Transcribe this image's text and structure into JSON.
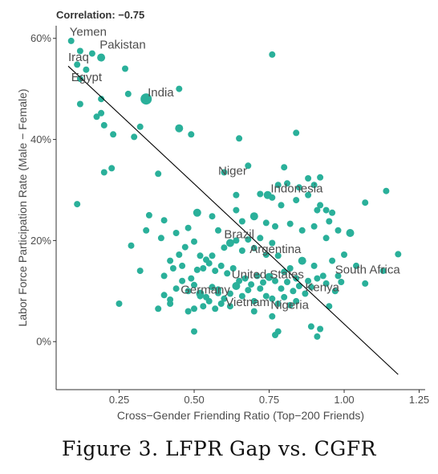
{
  "annotation": "Correlation: −0.75",
  "caption": "Figure 3. LFPR Gap vs. CGFR",
  "colors": {
    "point": "#2ab09a",
    "fit_line": "#000000",
    "axis": "#333333",
    "text": "#4d4d4d"
  },
  "chart_data": {
    "type": "scatter",
    "title": "",
    "xlabel": "Cross−Gender Friending Ratio (Top−200 Friends)",
    "ylabel": "Labor Force Participation Rate (Male − Female)",
    "xlim": [
      0.04,
      1.27
    ],
    "ylim": [
      -9.5,
      62.5
    ],
    "xticks": [
      0.25,
      0.5,
      0.75,
      1.0,
      1.25
    ],
    "xtick_labels": [
      "0.25",
      "0.50",
      "0.75",
      "1.00",
      "1.25"
    ],
    "yticks": [
      0,
      20,
      40,
      60
    ],
    "ytick_labels": [
      "0%",
      "20%",
      "40%",
      "60%"
    ],
    "grid": false,
    "fit_line": {
      "x": [
        0.08,
        1.18
      ],
      "y": [
        54.5,
        -6.5
      ]
    },
    "labels": [
      {
        "text": "Yemen",
        "x": 0.085,
        "y": 60.5
      },
      {
        "text": "Pakistan",
        "x": 0.185,
        "y": 58.0
      },
      {
        "text": "Iraq",
        "x": 0.08,
        "y": 55.5
      },
      {
        "text": "Egypt",
        "x": 0.09,
        "y": 51.5
      },
      {
        "text": "India",
        "x": 0.345,
        "y": 48.5
      },
      {
        "text": "Niger",
        "x": 0.58,
        "y": 33.0
      },
      {
        "text": "Indonesia",
        "x": 0.755,
        "y": 29.5
      },
      {
        "text": "Brazil",
        "x": 0.6,
        "y": 20.5
      },
      {
        "text": "Argentina",
        "x": 0.685,
        "y": 17.5
      },
      {
        "text": "South Africa",
        "x": 0.97,
        "y": 13.5
      },
      {
        "text": "United States",
        "x": 0.625,
        "y": 12.5
      },
      {
        "text": "Kenya",
        "x": 0.87,
        "y": 10.0
      },
      {
        "text": "Germany",
        "x": 0.455,
        "y": 9.5
      },
      {
        "text": "Vietnam",
        "x": 0.605,
        "y": 7.0
      },
      {
        "text": "Nigeria",
        "x": 0.755,
        "y": 6.5
      }
    ],
    "points": [
      [
        0.09,
        59.5,
        4
      ],
      [
        0.12,
        57.5,
        4
      ],
      [
        0.16,
        57.0,
        4
      ],
      [
        0.19,
        56.2,
        5
      ],
      [
        0.11,
        54.8,
        4
      ],
      [
        0.14,
        53.8,
        4
      ],
      [
        0.27,
        54.0,
        4
      ],
      [
        0.12,
        52.0,
        4
      ],
      [
        0.12,
        47.0,
        4
      ],
      [
        0.175,
        44.5,
        4
      ],
      [
        0.19,
        45.2,
        4
      ],
      [
        0.2,
        42.8,
        4
      ],
      [
        0.19,
        48.0,
        4
      ],
      [
        0.28,
        49.0,
        4
      ],
      [
        0.34,
        48.0,
        7
      ],
      [
        0.45,
        50.0,
        4
      ],
      [
        0.32,
        42.5,
        4
      ],
      [
        0.3,
        40.5,
        4
      ],
      [
        0.23,
        41.0,
        4
      ],
      [
        0.45,
        42.2,
        5
      ],
      [
        0.49,
        41.0,
        4
      ],
      [
        0.65,
        40.2,
        4
      ],
      [
        0.76,
        56.8,
        4
      ],
      [
        0.84,
        41.3,
        4
      ],
      [
        0.2,
        33.5,
        4
      ],
      [
        0.225,
        34.3,
        4
      ],
      [
        0.11,
        27.2,
        4
      ],
      [
        0.38,
        33.2,
        4
      ],
      [
        0.6,
        33.5,
        4
      ],
      [
        0.68,
        34.8,
        4
      ],
      [
        0.8,
        34.5,
        4
      ],
      [
        0.88,
        32.3,
        4
      ],
      [
        0.64,
        29.0,
        4
      ],
      [
        0.72,
        29.2,
        4
      ],
      [
        0.745,
        29.0,
        5
      ],
      [
        0.78,
        31.0,
        4
      ],
      [
        0.81,
        31.3,
        4
      ],
      [
        0.85,
        30.5,
        4
      ],
      [
        0.9,
        31.0,
        4
      ],
      [
        0.92,
        32.5,
        4
      ],
      [
        0.76,
        28.5,
        4
      ],
      [
        0.79,
        27.0,
        4
      ],
      [
        0.84,
        28.0,
        4
      ],
      [
        0.88,
        29.0,
        4
      ],
      [
        0.91,
        26.0,
        4
      ],
      [
        0.92,
        27.0,
        4
      ],
      [
        0.94,
        26.0,
        4
      ],
      [
        0.96,
        25.5,
        4
      ],
      [
        1.07,
        27.5,
        4
      ],
      [
        1.14,
        29.8,
        4
      ],
      [
        0.51,
        25.5,
        5
      ],
      [
        0.56,
        24.8,
        4
      ],
      [
        0.35,
        25.0,
        4
      ],
      [
        0.4,
        24.0,
        4
      ],
      [
        0.44,
        21.5,
        4
      ],
      [
        0.48,
        22.5,
        4
      ],
      [
        0.64,
        26.0,
        4
      ],
      [
        0.66,
        23.8,
        4
      ],
      [
        0.7,
        24.8,
        5
      ],
      [
        0.74,
        23.5,
        4
      ],
      [
        0.77,
        22.8,
        4
      ],
      [
        0.82,
        23.3,
        4
      ],
      [
        0.86,
        22.0,
        4
      ],
      [
        0.9,
        22.8,
        4
      ],
      [
        0.95,
        23.8,
        4
      ],
      [
        0.94,
        20.5,
        4
      ],
      [
        0.98,
        22.0,
        4
      ],
      [
        1.02,
        21.5,
        5
      ],
      [
        1.18,
        17.3,
        4
      ],
      [
        1.13,
        14.0,
        4
      ],
      [
        1.07,
        11.5,
        4
      ],
      [
        1.04,
        15.0,
        4
      ],
      [
        1.0,
        17.2,
        4
      ],
      [
        0.98,
        13.0,
        4
      ],
      [
        0.96,
        16.0,
        4
      ],
      [
        0.93,
        13.0,
        4
      ],
      [
        0.9,
        15.0,
        4
      ],
      [
        0.88,
        12.0,
        4
      ],
      [
        0.86,
        16.0,
        5
      ],
      [
        0.84,
        12.5,
        4
      ],
      [
        0.82,
        14.5,
        4
      ],
      [
        0.8,
        13.8,
        4
      ],
      [
        0.78,
        17.0,
        4
      ],
      [
        0.76,
        19.5,
        4
      ],
      [
        0.74,
        17.2,
        4
      ],
      [
        0.72,
        20.5,
        4
      ],
      [
        0.7,
        18.5,
        4
      ],
      [
        0.68,
        20.2,
        4
      ],
      [
        0.66,
        18.0,
        4
      ],
      [
        0.64,
        20.0,
        4
      ],
      [
        0.62,
        19.5,
        5
      ],
      [
        0.6,
        18.6,
        4
      ],
      [
        0.58,
        22.0,
        4
      ],
      [
        0.56,
        17.0,
        4
      ],
      [
        0.54,
        16.2,
        4
      ],
      [
        0.52,
        17.0,
        4
      ],
      [
        0.5,
        19.8,
        4
      ],
      [
        0.47,
        18.7,
        4
      ],
      [
        0.45,
        17.2,
        4
      ],
      [
        0.42,
        16.0,
        4
      ],
      [
        0.39,
        20.5,
        4
      ],
      [
        0.34,
        22.0,
        4
      ],
      [
        0.29,
        19.0,
        4
      ],
      [
        0.32,
        14.0,
        4
      ],
      [
        0.4,
        13.0,
        4
      ],
      [
        0.43,
        14.5,
        4
      ],
      [
        0.46,
        15.0,
        4
      ],
      [
        0.49,
        12.5,
        4
      ],
      [
        0.51,
        14.2,
        4
      ],
      [
        0.53,
        14.5,
        4
      ],
      [
        0.55,
        15.5,
        4
      ],
      [
        0.57,
        14.0,
        4
      ],
      [
        0.59,
        15.0,
        4
      ],
      [
        0.61,
        13.5,
        4
      ],
      [
        0.63,
        14.5,
        4
      ],
      [
        0.65,
        12.0,
        4
      ],
      [
        0.67,
        12.5,
        4
      ],
      [
        0.69,
        11.3,
        4
      ],
      [
        0.71,
        13.0,
        4
      ],
      [
        0.73,
        11.7,
        4
      ],
      [
        0.75,
        12.8,
        5
      ],
      [
        0.77,
        12.0,
        4
      ],
      [
        0.79,
        10.5,
        4
      ],
      [
        0.81,
        11.8,
        4
      ],
      [
        0.83,
        10.0,
        4
      ],
      [
        0.85,
        11.0,
        4
      ],
      [
        0.87,
        9.5,
        4
      ],
      [
        0.89,
        10.8,
        4
      ],
      [
        0.91,
        12.5,
        4
      ],
      [
        0.94,
        11.5,
        4
      ],
      [
        0.97,
        10.0,
        4
      ],
      [
        0.99,
        11.8,
        4
      ],
      [
        0.4,
        9.2,
        4
      ],
      [
        0.42,
        8.3,
        4
      ],
      [
        0.44,
        10.5,
        4
      ],
      [
        0.46,
        12.0,
        4
      ],
      [
        0.48,
        10.0,
        4
      ],
      [
        0.5,
        11.2,
        4
      ],
      [
        0.52,
        9.0,
        4
      ],
      [
        0.54,
        8.8,
        4
      ],
      [
        0.56,
        10.8,
        4
      ],
      [
        0.58,
        9.6,
        4
      ],
      [
        0.6,
        8.5,
        4
      ],
      [
        0.62,
        9.5,
        4
      ],
      [
        0.64,
        11.0,
        5
      ],
      [
        0.66,
        9.0,
        4
      ],
      [
        0.68,
        10.2,
        4
      ],
      [
        0.7,
        8.0,
        4
      ],
      [
        0.72,
        10.5,
        4
      ],
      [
        0.74,
        9.0,
        4
      ],
      [
        0.76,
        8.5,
        4
      ],
      [
        0.78,
        7.5,
        4
      ],
      [
        0.8,
        8.8,
        4
      ],
      [
        0.82,
        7.2,
        4
      ],
      [
        0.84,
        8.0,
        4
      ],
      [
        0.95,
        7.0,
        4
      ],
      [
        0.25,
        7.5,
        4
      ],
      [
        0.38,
        6.5,
        4
      ],
      [
        0.42,
        7.5,
        4
      ],
      [
        0.48,
        6.0,
        4
      ],
      [
        0.5,
        6.5,
        4
      ],
      [
        0.53,
        7.0,
        4
      ],
      [
        0.55,
        8.0,
        4
      ],
      [
        0.57,
        6.5,
        4
      ],
      [
        0.59,
        7.5,
        4
      ],
      [
        0.62,
        7.0,
        4
      ],
      [
        0.7,
        6.0,
        4
      ],
      [
        0.76,
        5.0,
        4
      ],
      [
        0.5,
        2.0,
        4
      ],
      [
        0.77,
        1.3,
        4
      ],
      [
        0.78,
        2.0,
        4
      ],
      [
        0.89,
        3.0,
        4
      ],
      [
        0.91,
        1.0,
        4
      ],
      [
        0.92,
        2.5,
        4
      ],
      [
        0.52,
        9.5,
        5
      ],
      [
        0.58,
        10.3,
        4
      ]
    ]
  }
}
